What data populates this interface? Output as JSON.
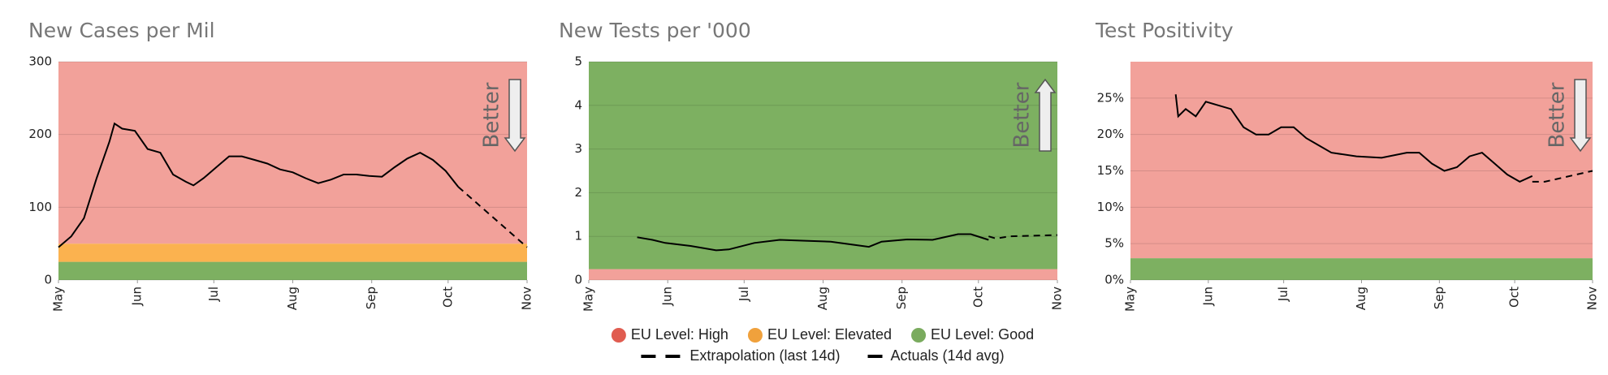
{
  "legend": [
    {
      "name": "EU Level: High",
      "color": "#e05c50",
      "band_color": "#f2a19a"
    },
    {
      "name": "EU Level: Elevated",
      "color": "#f0a13c",
      "band_color": "#fbb24f"
    },
    {
      "name": "EU Level: Good",
      "color": "#7aab5e",
      "band_color": "#7db061"
    },
    {
      "name": "Extrapolation (last 14d)",
      "color": "#000000",
      "style": "dashed"
    },
    {
      "name": "Actuals (14d avg)",
      "color": "#000000",
      "style": "solid"
    }
  ],
  "chart_data": [
    {
      "type": "line",
      "title": "New Cases per Mil",
      "annotation": "Better",
      "better_direction": "down",
      "xlim": [
        0,
        184
      ],
      "xticks": [
        {
          "value": 0,
          "label": "May"
        },
        {
          "value": 31,
          "label": "Jun"
        },
        {
          "value": 61,
          "label": "Jul"
        },
        {
          "value": 92,
          "label": "Aug"
        },
        {
          "value": 123,
          "label": "Sep"
        },
        {
          "value": 153,
          "label": "Oct"
        },
        {
          "value": 184,
          "label": "Nov"
        }
      ],
      "ylim": [
        0,
        300
      ],
      "yticks": [
        0,
        100,
        200,
        300
      ],
      "grid": true,
      "bands": [
        {
          "level": 2,
          "from": 0,
          "to": 25
        },
        {
          "level": 1,
          "from": 25,
          "to": 50
        },
        {
          "level": 0,
          "from": 50,
          "to": 300
        }
      ],
      "series": [
        {
          "style": "solid",
          "color": "#000000",
          "x": [
            0,
            5,
            10,
            15,
            20,
            22,
            25,
            30,
            35,
            40,
            45,
            50,
            53,
            57,
            62,
            67,
            72,
            77,
            82,
            87,
            92,
            97,
            102,
            107,
            112,
            117,
            122,
            127,
            132,
            137,
            142,
            147,
            152,
            157
          ],
          "values": [
            45,
            60,
            85,
            140,
            190,
            215,
            208,
            205,
            180,
            175,
            145,
            135,
            130,
            140,
            155,
            170,
            170,
            165,
            160,
            152,
            148,
            140,
            133,
            138,
            145,
            145,
            143,
            142,
            155,
            167,
            175,
            165,
            150,
            128
          ]
        },
        {
          "style": "dashed",
          "color": "#000000",
          "x": [
            157,
            184
          ],
          "values": [
            128,
            45
          ]
        }
      ]
    },
    {
      "type": "line",
      "title": "New Tests per '000",
      "annotation": "Better",
      "better_direction": "up",
      "xlim": [
        0,
        184
      ],
      "xticks": [
        {
          "value": 0,
          "label": "May"
        },
        {
          "value": 31,
          "label": "Jun"
        },
        {
          "value": 61,
          "label": "Jul"
        },
        {
          "value": 92,
          "label": "Aug"
        },
        {
          "value": 123,
          "label": "Sep"
        },
        {
          "value": 153,
          "label": "Oct"
        },
        {
          "value": 184,
          "label": "Nov"
        }
      ],
      "ylim": [
        0,
        5
      ],
      "yticks": [
        0,
        1,
        2,
        3,
        4,
        5
      ],
      "grid": true,
      "bands": [
        {
          "level": 0,
          "from": 0,
          "to": 0.25
        },
        {
          "level": 2,
          "from": 0.25,
          "to": 5
        }
      ],
      "series": [
        {
          "style": "solid",
          "color": "#000000",
          "x": [
            19,
            25,
            30,
            40,
            50,
            55,
            65,
            75,
            85,
            95,
            105,
            110,
            115,
            125,
            135,
            145,
            150,
            157
          ],
          "values": [
            0.98,
            0.92,
            0.85,
            0.78,
            0.68,
            0.7,
            0.85,
            0.92,
            0.9,
            0.88,
            0.8,
            0.76,
            0.88,
            0.93,
            0.92,
            1.05,
            1.05,
            0.92
          ]
        },
        {
          "style": "dashed",
          "color": "#000000",
          "x": [
            157,
            160,
            165,
            184
          ],
          "values": [
            1.0,
            0.95,
            1.0,
            1.03
          ]
        }
      ]
    },
    {
      "type": "line",
      "title": "Test Positivity",
      "annotation": "Better",
      "better_direction": "down",
      "xlim": [
        0,
        184
      ],
      "xticks": [
        {
          "value": 0,
          "label": "May"
        },
        {
          "value": 31,
          "label": "Jun"
        },
        {
          "value": 61,
          "label": "Jul"
        },
        {
          "value": 92,
          "label": "Aug"
        },
        {
          "value": 123,
          "label": "Sep"
        },
        {
          "value": 153,
          "label": "Oct"
        },
        {
          "value": 184,
          "label": "Nov"
        }
      ],
      "ylim": [
        0,
        30
      ],
      "yticks": [
        {
          "value": 0,
          "label": "0%"
        },
        {
          "value": 5,
          "label": "5%"
        },
        {
          "value": 10,
          "label": "10%"
        },
        {
          "value": 15,
          "label": "15%"
        },
        {
          "value": 20,
          "label": "20%"
        },
        {
          "value": 25,
          "label": "25%"
        }
      ],
      "grid": true,
      "bands": [
        {
          "level": 2,
          "from": 0,
          "to": 3
        },
        {
          "level": 0,
          "from": 3,
          "to": 30
        }
      ],
      "series": [
        {
          "style": "solid",
          "color": "#000000",
          "x": [
            18,
            19,
            22,
            26,
            30,
            35,
            40,
            45,
            50,
            55,
            60,
            65,
            70,
            75,
            80,
            90,
            100,
            110,
            115,
            120,
            125,
            130,
            135,
            140,
            145,
            150,
            155,
            160
          ],
          "values": [
            25.5,
            22.5,
            23.5,
            22.5,
            24.5,
            24,
            23.5,
            21,
            20,
            20,
            21,
            21,
            19.5,
            18.5,
            17.5,
            17,
            16.8,
            17.5,
            17.5,
            16,
            15,
            15.5,
            17,
            17.5,
            16,
            14.5,
            13.5,
            14.3
          ]
        },
        {
          "style": "dashed",
          "color": "#000000",
          "x": [
            160,
            165,
            184
          ],
          "values": [
            13.5,
            13.5,
            15
          ]
        }
      ]
    }
  ]
}
